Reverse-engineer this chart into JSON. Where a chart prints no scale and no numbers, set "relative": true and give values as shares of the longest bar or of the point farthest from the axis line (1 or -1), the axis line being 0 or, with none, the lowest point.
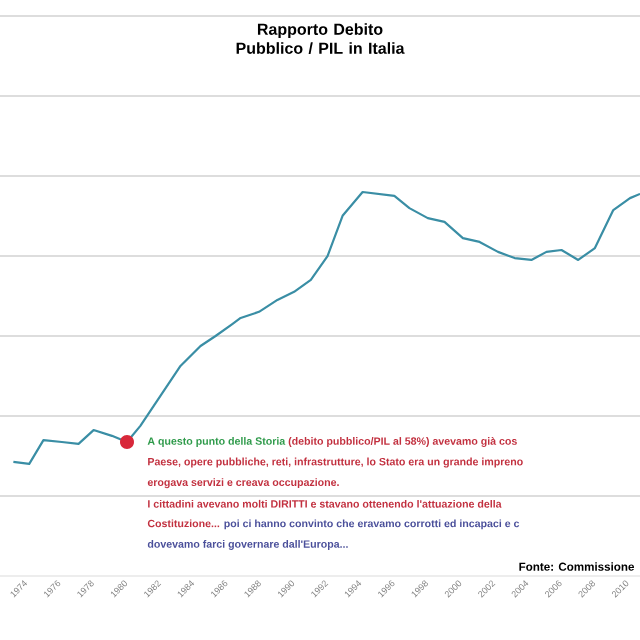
{
  "chart_data": {
    "type": "line",
    "title": "Rapporto Debito Pubblico / PIL in Italia",
    "relative": true,
    "x": [
      1973.4,
      1974.35,
      1975.2,
      1976.3,
      1977.3,
      1978.2,
      1979.3,
      1980.2,
      1981.0,
      1982.2,
      1983.4,
      1984.6,
      1985.5,
      1986.5,
      1987.0,
      1988.1,
      1989.2,
      1990.2,
      1991.2,
      1992.2,
      1993.1,
      1994.3,
      1996.2,
      1997.1,
      1998.2,
      1999.2,
      2000.3,
      2001.3,
      2002.4,
      2003.4,
      2004.4,
      2005.3,
      2006.2,
      2007.2,
      2008.2,
      2009.3,
      2010.3,
      2010.9
    ],
    "values": [
      0.297,
      0.292,
      0.354,
      0.349,
      0.344,
      0.38,
      0.365,
      0.349,
      0.391,
      0.469,
      0.547,
      0.599,
      0.625,
      0.656,
      0.672,
      0.688,
      0.719,
      0.74,
      0.771,
      0.833,
      0.938,
      1,
      0.99,
      0.958,
      0.932,
      0.922,
      0.88,
      0.87,
      0.844,
      0.828,
      0.823,
      0.844,
      0.849,
      0.823,
      0.854,
      0.953,
      0.984,
      0.995
    ],
    "color": "#3a8ea5",
    "xlim": [
      1972.6,
      2010.9
    ],
    "xticks": [
      1974,
      1976,
      1978,
      1980,
      1982,
      1984,
      1986,
      1988,
      1990,
      1992,
      1994,
      1996,
      1998,
      2000,
      2002,
      2004,
      2006,
      2008,
      2010
    ],
    "grid": "y",
    "annotations": [
      {
        "text": "A questo punto della Storia",
        "x": 1980.2,
        "y": 0.349
      },
      "(debito pubblico/PIL al 58%) avevamo già cos",
      "Paese, opere pubbliche, reti, infrastrutture, lo Stato era un grande impreno",
      "erogava servizi e creava occupazione.",
      "I cittadini avevano molti DIRITTI e stavano ottenendo l'attuazione della",
      "Costituzione...",
      "poi ci hanno convinto che eravamo corrotti ed incapaci e c",
      "dovevamo farci governare dall'Europa...",
      "Fonte: Commissione"
    ]
  }
}
